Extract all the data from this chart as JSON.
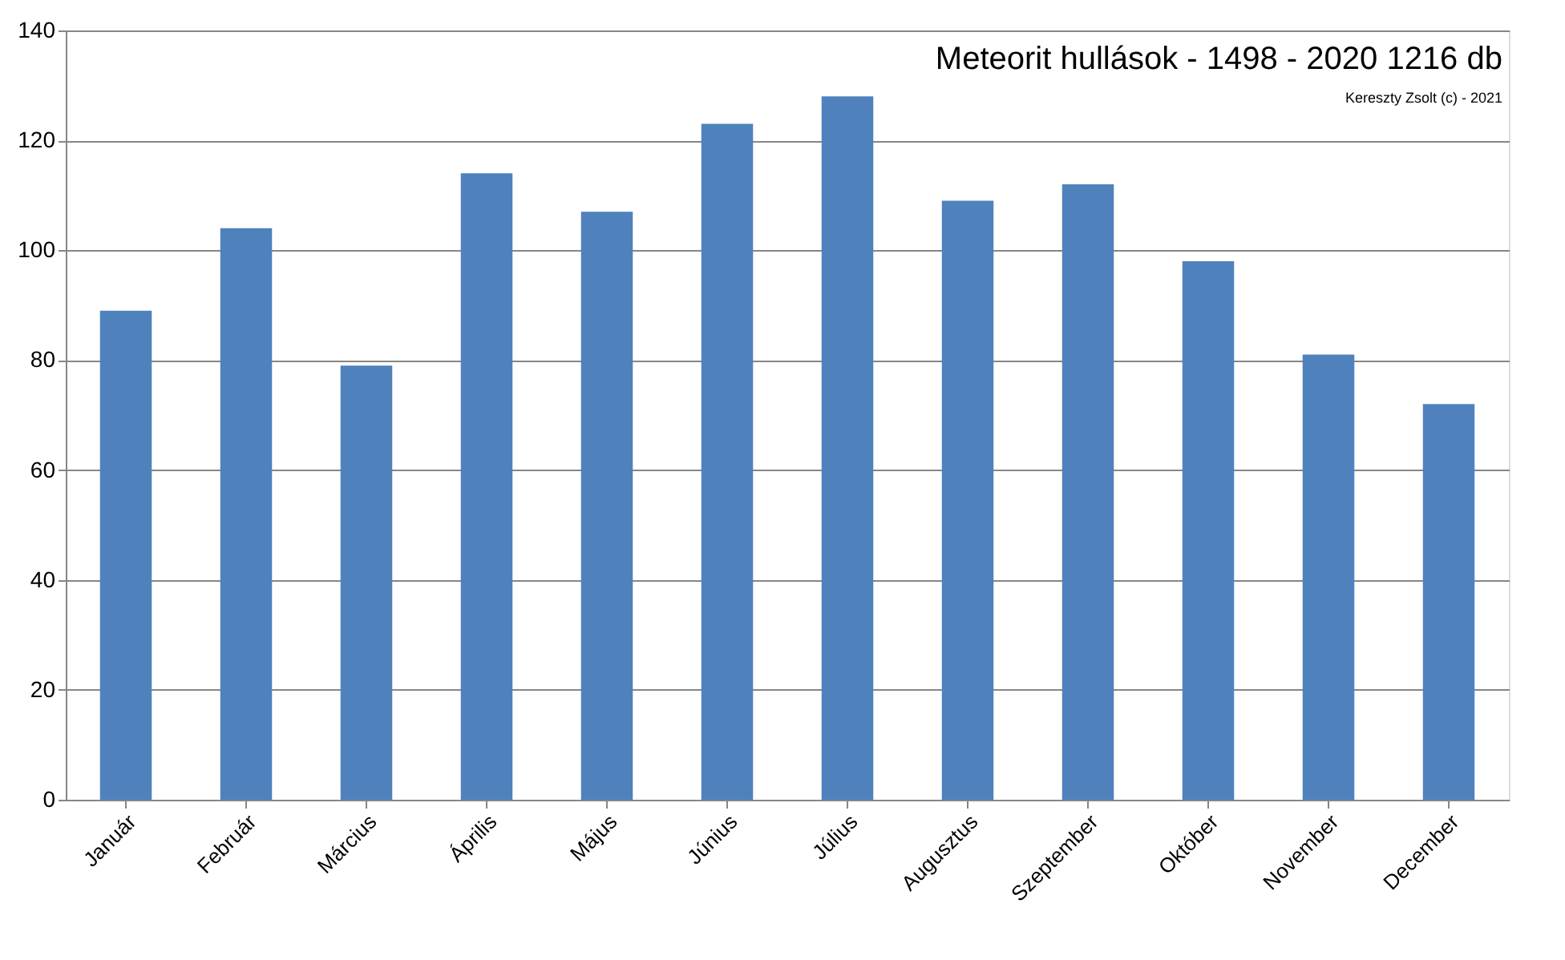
{
  "chart_data": {
    "type": "bar",
    "title": "Meteorit hullások - 1498 - 2020  1216 db",
    "categories": [
      "Január",
      "Február",
      "Március",
      "Április",
      "Május",
      "Június",
      "Július",
      "Augusztus",
      "Szeptember",
      "Október",
      "November",
      "December"
    ],
    "values": [
      89,
      104,
      79,
      114,
      107,
      123,
      128,
      109,
      112,
      98,
      81,
      72
    ],
    "color": "#4f81bd",
    "ylim": [
      0,
      140
    ],
    "yticks": [
      0,
      20,
      40,
      60,
      80,
      100,
      120,
      140
    ],
    "grid": "y",
    "annotations": [
      "Kereszty Zsolt (c) - 2021"
    ]
  }
}
